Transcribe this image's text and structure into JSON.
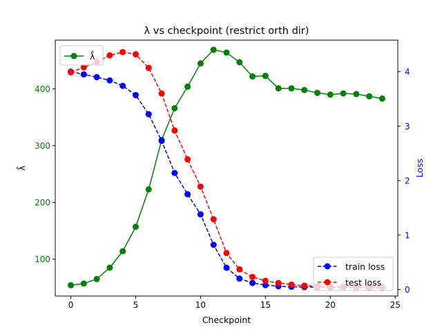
{
  "chart_data": {
    "type": "line",
    "title": "λ vs checkpoint (restrict orth dir)",
    "xlabel": "Checkpoint",
    "ylabel_left": "λ̂",
    "ylabel_right": "Loss",
    "xlim": [
      -1.2,
      25.2
    ],
    "ylim_left": [
      35,
      486
    ],
    "ylim_right": [
      -0.12,
      4.58
    ],
    "x_ticks": [
      0,
      5,
      10,
      15,
      20,
      25
    ],
    "y_ticks_left": [
      100,
      200,
      300,
      400
    ],
    "y_ticks_right": [
      0,
      1,
      2,
      3,
      4
    ],
    "x": [
      0,
      1,
      2,
      3,
      4,
      5,
      6,
      7,
      8,
      9,
      10,
      11,
      12,
      13,
      14,
      15,
      16,
      17,
      18,
      19,
      20,
      21,
      22,
      23,
      24
    ],
    "series": [
      {
        "name": "λ̂",
        "axis": "left",
        "color": "#008000",
        "line_style": "solid",
        "values": [
          54,
          57,
          65,
          85,
          114,
          157,
          223,
          310,
          366,
          404,
          445,
          469,
          464,
          447,
          422,
          423,
          401,
          401,
          398,
          393,
          390,
          392,
          391,
          387,
          383
        ]
      },
      {
        "name": "train loss",
        "axis": "right",
        "color": "#0000ff",
        "line_style": "dashed",
        "values": [
          4.0,
          3.95,
          3.9,
          3.84,
          3.74,
          3.57,
          3.22,
          2.73,
          2.14,
          1.75,
          1.38,
          0.82,
          0.4,
          0.2,
          0.12,
          0.08,
          0.06,
          0.05,
          0.045,
          0.04,
          0.04,
          0.035,
          0.035,
          0.03,
          0.03
        ]
      },
      {
        "name": "test loss",
        "axis": "right",
        "color": "#ff0000",
        "line_style": "dashed",
        "values": [
          3.99,
          4.08,
          4.18,
          4.3,
          4.36,
          4.32,
          4.07,
          3.6,
          2.92,
          2.39,
          1.89,
          1.29,
          0.67,
          0.37,
          0.23,
          0.16,
          0.12,
          0.09,
          0.07,
          0.06,
          0.055,
          0.05,
          0.05,
          0.045,
          0.045
        ]
      }
    ],
    "legend_left_position": "upper-left",
    "legend_right_position": "lower-right",
    "grid": false,
    "colors": {
      "left_axis_ticks": "#008000",
      "right_axis_ticks": "#0000ff",
      "axis_frame": "#000000"
    }
  }
}
